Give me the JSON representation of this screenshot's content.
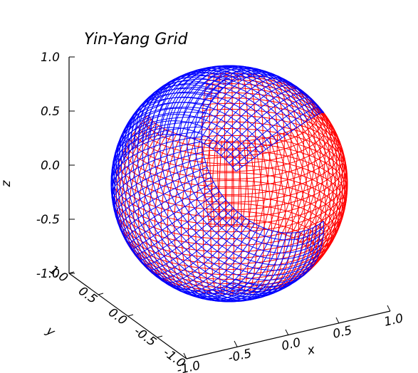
{
  "chart_data": {
    "type": "scatter",
    "subtype": "3d-wireframe-sphere",
    "title": "Yin-Yang Grid",
    "axes": {
      "x": {
        "label": "x",
        "range": [
          -1.0,
          1.0
        ],
        "ticks": [
          "-1.0",
          "-0.5",
          "0.0",
          "0.5",
          "1.0"
        ]
      },
      "y": {
        "label": "y",
        "range": [
          -1.0,
          1.0
        ],
        "ticks": [
          "-1.0",
          "-0.5",
          "0.0",
          "0.5",
          "1.0"
        ]
      },
      "z": {
        "label": "z",
        "range": [
          -1.0,
          1.0
        ],
        "ticks": [
          "-1.0",
          "-0.5",
          "0.0",
          "0.5",
          "1.0"
        ]
      }
    },
    "series": [
      {
        "color": "#ff0000",
        "n_colatitude_lines": 24,
        "n_longitude_lines": 72,
        "colatitude_range_deg": [
          45,
          135
        ],
        "longitude_range_deg": [
          -135,
          135
        ]
      },
      {
        "color": "#0000ff",
        "n_colatitude_lines": 24,
        "n_longitude_lines": 72,
        "colatitude_range_deg": [
          45,
          135
        ],
        "longitude_range_deg": [
          -135,
          135
        ]
      }
    ],
    "grid": false,
    "background": "#ffffff"
  }
}
